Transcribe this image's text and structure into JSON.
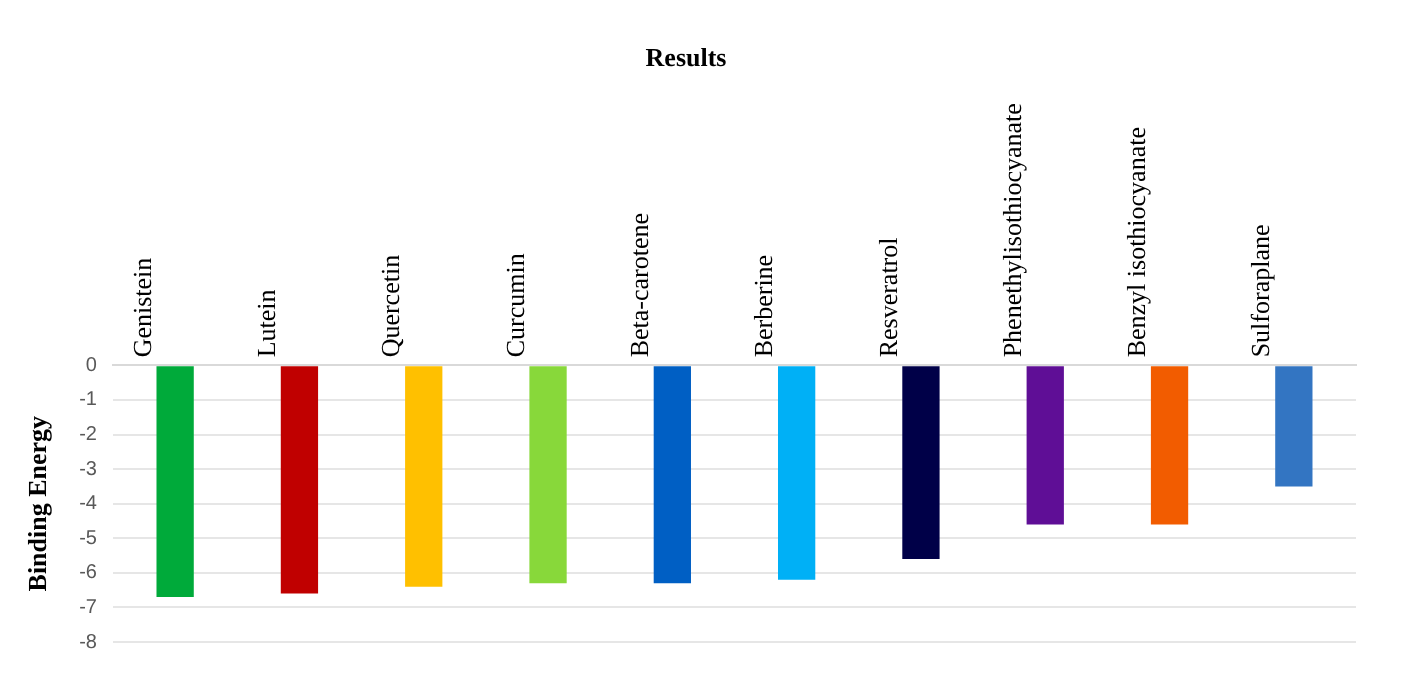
{
  "chart_data": {
    "type": "bar",
    "title": "Results",
    "ylabel": "Binding Energy",
    "categories": [
      "Genistein",
      "Lutein",
      "Quercetin",
      "Curcumin",
      "Beta-carotene",
      "Berberine",
      "Resveratrol",
      "Phenethylisothiocyanate",
      "Benzyl isothiocyanate",
      "Sulforaplane"
    ],
    "values": [
      -6.7,
      -6.6,
      -6.4,
      -6.3,
      -6.3,
      -6.2,
      -5.6,
      -4.6,
      -4.6,
      -3.5
    ],
    "colors": [
      "#00aa3a",
      "#c00000",
      "#ffc000",
      "#88d83a",
      "#005fc4",
      "#00b0f6",
      "#000048",
      "#5f0e96",
      "#f25c00",
      "#3375c2"
    ],
    "ylim": [
      -8,
      0
    ],
    "yticks": [
      -8,
      -7,
      -6,
      -5,
      -4,
      -3,
      -2,
      -1,
      0
    ],
    "grid": "y",
    "legend": false
  }
}
